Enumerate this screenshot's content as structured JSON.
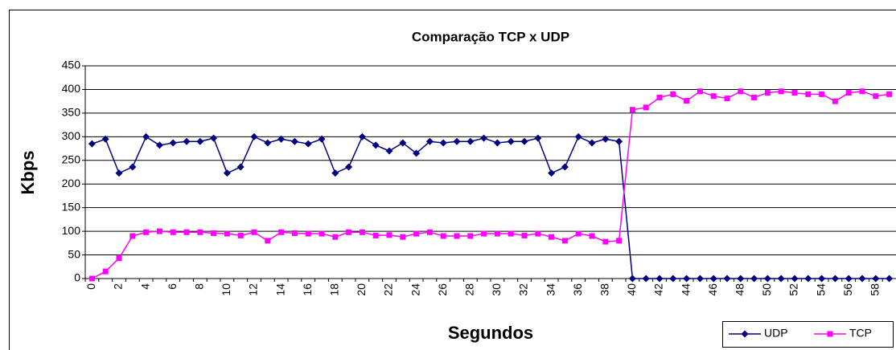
{
  "chart_data": {
    "type": "line",
    "title": "Comparação TCP x UDP",
    "x_label": "Segundos",
    "y_label": "Kbps",
    "categories": [
      "0",
      null,
      "2",
      null,
      "4",
      null,
      "6",
      null,
      "8",
      null,
      "10",
      null,
      "12",
      null,
      "14",
      null,
      "16",
      null,
      "18",
      null,
      "20",
      null,
      "22",
      null,
      "24",
      null,
      "26",
      null,
      "28",
      null,
      "30",
      null,
      "32",
      null,
      "34",
      null,
      "36",
      null,
      "38",
      null,
      "40",
      null,
      "42",
      null,
      "44",
      null,
      "46",
      null,
      "48",
      null,
      "50",
      null,
      "52",
      null,
      "54",
      null,
      "56",
      null,
      "58",
      null
    ],
    "series": [
      {
        "name": "UDP",
        "color": "#000080",
        "marker": "diamond",
        "values": [
          285,
          295,
          223,
          236,
          300,
          282,
          287,
          290,
          290,
          297,
          223,
          236,
          300,
          287,
          295,
          290,
          285,
          295,
          223,
          236,
          300,
          282,
          270,
          287,
          265,
          290,
          287,
          290,
          290,
          297,
          287,
          290,
          290,
          297,
          223,
          236,
          300,
          287,
          295,
          290,
          0,
          0,
          0,
          0,
          0,
          0,
          0,
          0,
          0,
          0,
          0,
          0,
          0,
          0,
          0,
          0,
          0,
          0,
          0,
          0
        ]
      },
      {
        "name": "TCP",
        "color": "#FF00FF",
        "marker": "square",
        "values": [
          0,
          15,
          43,
          90,
          98,
          100,
          98,
          98,
          98,
          96,
          95,
          91,
          98,
          80,
          98,
          96,
          95,
          95,
          88,
          98,
          98,
          91,
          92,
          88,
          95,
          98,
          90,
          90,
          90,
          95,
          95,
          95,
          91,
          95,
          88,
          80,
          95,
          90,
          78,
          80,
          357,
          362,
          383,
          390,
          376,
          396,
          386,
          381,
          396,
          383,
          393,
          396,
          393,
          390,
          390,
          375,
          393,
          396,
          386,
          390
        ]
      }
    ],
    "ylim": [
      0,
      450
    ],
    "yticks": [
      0,
      50,
      100,
      150,
      200,
      250,
      300,
      350,
      400,
      450
    ],
    "grid": true,
    "legend": "bottom-right"
  }
}
